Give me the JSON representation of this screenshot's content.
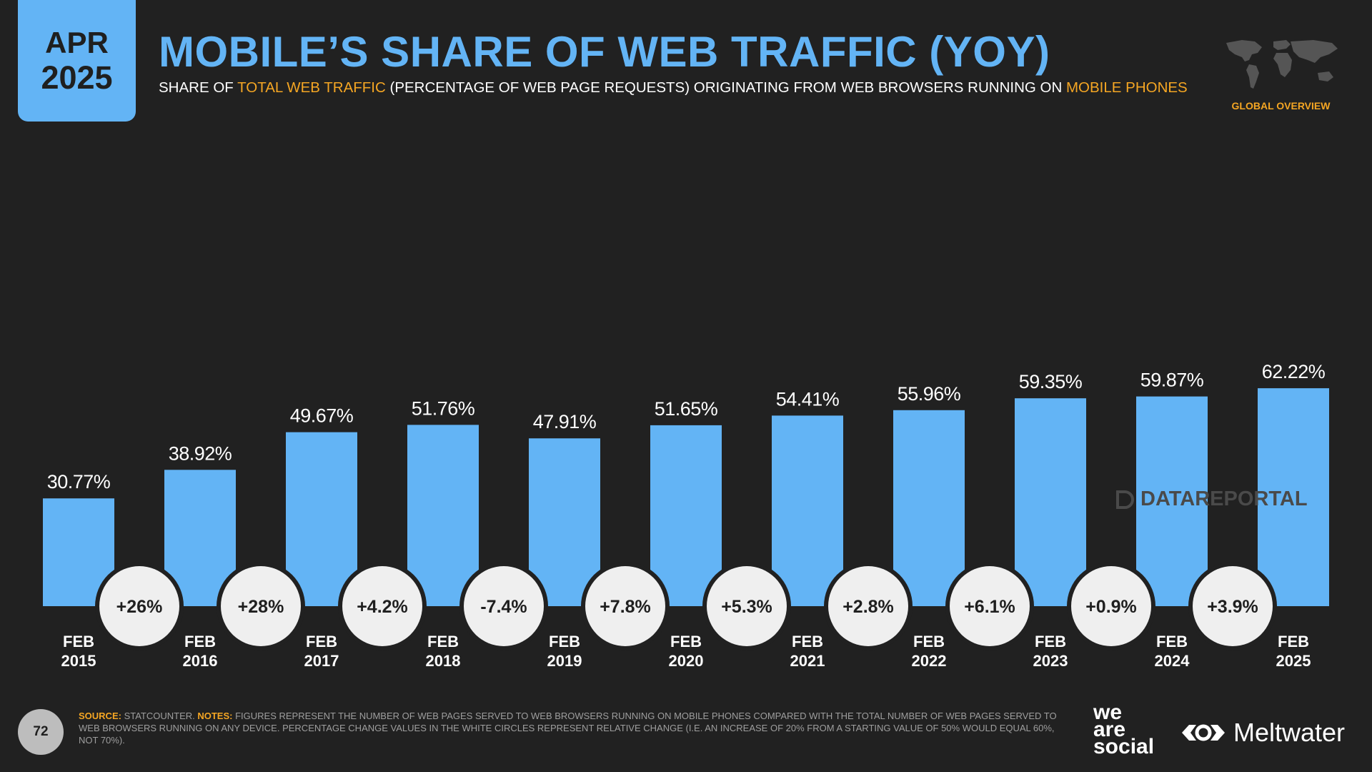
{
  "header": {
    "badge_month": "APR",
    "badge_year": "2025",
    "title": "MOBILE’S SHARE OF WEB TRAFFIC (YOY)",
    "subtitle_parts": [
      "SHARE OF ",
      "TOTAL WEB TRAFFIC",
      " (PERCENTAGE OF WEB PAGE REQUESTS) ORIGINATING FROM WEB BROWSERS RUNNING ON ",
      "MOBILE PHONES"
    ],
    "region_label": "GLOBAL OVERVIEW",
    "region_icon": "world-map-icon"
  },
  "chart_data": {
    "type": "bar",
    "categories": [
      [
        "FEB",
        "2015"
      ],
      [
        "FEB",
        "2016"
      ],
      [
        "FEB",
        "2017"
      ],
      [
        "FEB",
        "2018"
      ],
      [
        "FEB",
        "2019"
      ],
      [
        "FEB",
        "2020"
      ],
      [
        "FEB",
        "2021"
      ],
      [
        "FEB",
        "2022"
      ],
      [
        "FEB",
        "2023"
      ],
      [
        "FEB",
        "2024"
      ],
      [
        "FEB",
        "2025"
      ]
    ],
    "values": [
      30.77,
      38.92,
      49.67,
      51.76,
      47.91,
      51.65,
      54.41,
      55.96,
      59.35,
      59.87,
      62.22
    ],
    "value_labels": [
      "30.77%",
      "38.92%",
      "49.67%",
      "51.76%",
      "47.91%",
      "51.65%",
      "54.41%",
      "55.96%",
      "59.35%",
      "59.87%",
      "62.22%"
    ],
    "yoy_change_labels": [
      "+26%",
      "+28%",
      "+4.2%",
      "-7.4%",
      "+7.8%",
      "+5.3%",
      "+2.8%",
      "+6.1%",
      "+0.9%",
      "+3.9%"
    ],
    "ylim": [
      0,
      100
    ],
    "grid": false,
    "colors": {
      "bar": "#63b4f5",
      "circle": "#efefef",
      "circle_text": "#1f1f1f",
      "value_text": "#ffffff",
      "axis_text": "#ffffff"
    }
  },
  "watermark": {
    "text": "DATAREPORTAL",
    "icon": "datareportal-icon"
  },
  "footer": {
    "page_number": "72",
    "source_label": "SOURCE:",
    "source_text": " STATCOUNTER. ",
    "notes_label": "NOTES:",
    "notes_text": " FIGURES REPRESENT THE NUMBER OF WEB PAGES SERVED TO WEB BROWSERS RUNNING ON MOBILE PHONES COMPARED WITH THE TOTAL NUMBER OF WEB PAGES SERVED TO WEB BROWSERS RUNNING ON ANY DEVICE. PERCENTAGE CHANGE VALUES IN THE WHITE CIRCLES REPRESENT RELATIVE CHANGE (I.E. AN INCREASE OF 20% FROM A STARTING VALUE OF 50% WOULD EQUAL 60%, NOT 70%).",
    "logo_we": "we",
    "logo_are": "are",
    "logo_social": "social",
    "logo_meltwater": "Meltwater",
    "meltwater_icon": "meltwater-icon"
  }
}
